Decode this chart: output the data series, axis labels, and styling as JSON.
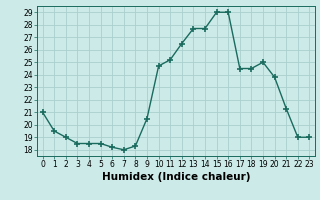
{
  "x": [
    0,
    1,
    2,
    3,
    4,
    5,
    6,
    7,
    8,
    9,
    10,
    11,
    12,
    13,
    14,
    15,
    16,
    17,
    18,
    19,
    20,
    21,
    22,
    23
  ],
  "y": [
    21.0,
    19.5,
    19.0,
    18.5,
    18.5,
    18.5,
    18.2,
    18.0,
    18.3,
    20.5,
    24.7,
    25.2,
    26.5,
    27.7,
    27.7,
    29.0,
    29.0,
    24.5,
    24.5,
    25.0,
    23.8,
    21.3,
    19.0,
    19.0
  ],
  "line_color": "#1a6b5e",
  "marker": "+",
  "markersize": 4,
  "linewidth": 1.0,
  "xlabel": "Humidex (Indice chaleur)",
  "xlim": [
    -0.5,
    23.5
  ],
  "ylim": [
    17.5,
    29.5
  ],
  "yticks": [
    18,
    19,
    20,
    21,
    22,
    23,
    24,
    25,
    26,
    27,
    28,
    29
  ],
  "xticks": [
    0,
    1,
    2,
    3,
    4,
    5,
    6,
    7,
    8,
    9,
    10,
    11,
    12,
    13,
    14,
    15,
    16,
    17,
    18,
    19,
    20,
    21,
    22,
    23
  ],
  "bg_color": "#cceae8",
  "grid_color": "#aacfcc",
  "tick_fontsize": 5.5,
  "xlabel_fontsize": 7.5
}
